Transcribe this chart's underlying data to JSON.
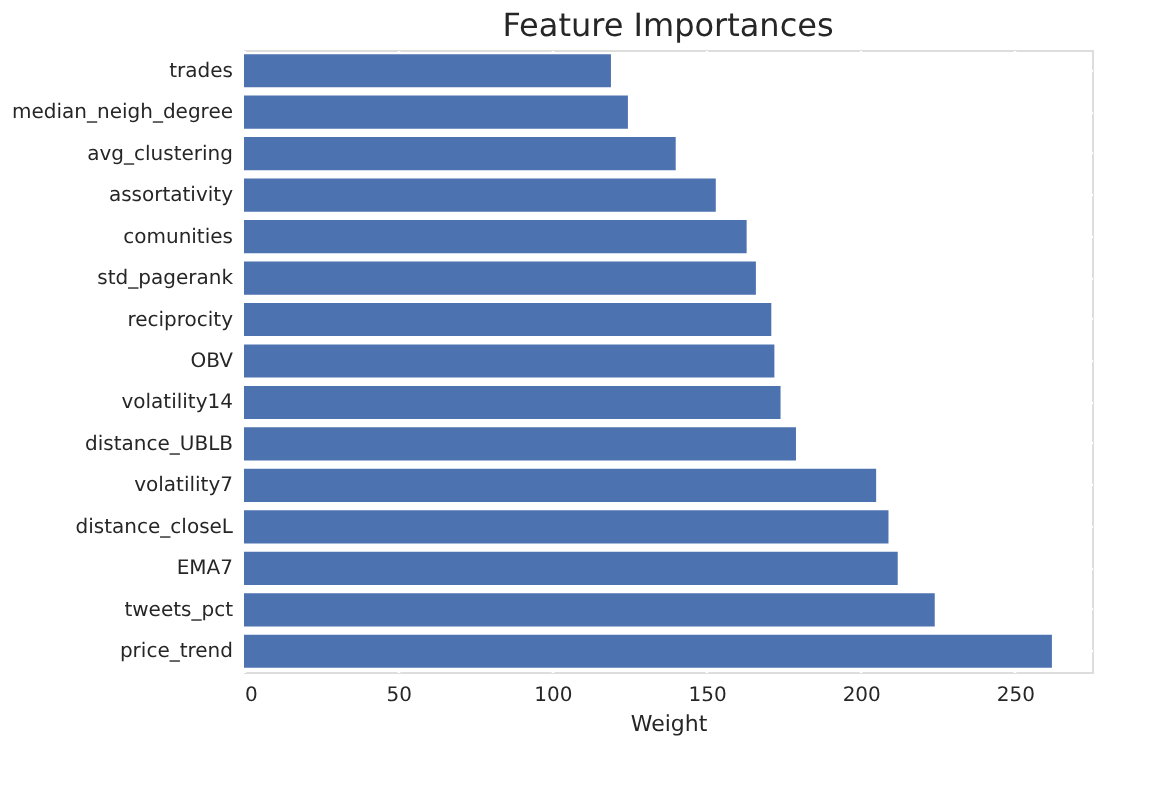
{
  "chart_data": {
    "type": "bar",
    "orientation": "horizontal",
    "title": "Feature Importances",
    "xlabel": "Weight",
    "categories": [
      "trades",
      "median_neigh_degree",
      "avg_clustering",
      "assortativity",
      "comunities",
      "std_pagerank",
      "reciprocity",
      "OBV",
      "volatility14",
      "distance_UBLB",
      "volatility7",
      "distance_closeL",
      "EMA7",
      "tweets_pct",
      "price_trend"
    ],
    "values": [
      119,
      124.5,
      140,
      153,
      163,
      166,
      171,
      172,
      174,
      179,
      205,
      209,
      212,
      224,
      262
    ],
    "color": "#4c72b0",
    "xlim": [
      0,
      275
    ],
    "xticks": [
      0,
      50,
      100,
      150,
      200,
      250
    ],
    "grid": true
  }
}
